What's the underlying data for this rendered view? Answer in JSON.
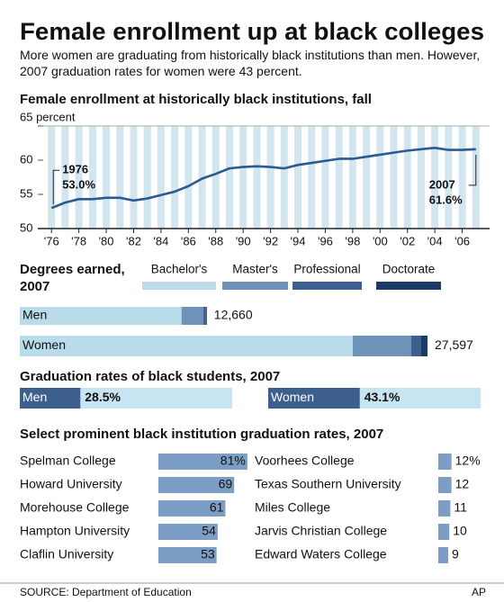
{
  "title": "Female enrollment up at black colleges",
  "subtitle": "More women are graduating from historically black institutions than men. However, 2007 graduation rates for women were 43 percent.",
  "source": "SOURCE: Department of Education",
  "credit": "AP",
  "chart_data": [
    {
      "type": "line",
      "title": "Female enrollment at historically black institutions, fall",
      "x": [
        1976,
        1977,
        1978,
        1979,
        1980,
        1981,
        1982,
        1983,
        1984,
        1985,
        1986,
        1987,
        1988,
        1989,
        1990,
        1991,
        1992,
        1993,
        1994,
        1995,
        1996,
        1997,
        1998,
        1999,
        2000,
        2001,
        2002,
        2003,
        2004,
        2005,
        2006,
        2007
      ],
      "values": [
        53.0,
        53.8,
        54.3,
        54.3,
        54.5,
        54.5,
        54.1,
        54.4,
        54.9,
        55.4,
        56.2,
        57.3,
        58.0,
        58.8,
        59.0,
        59.1,
        59.0,
        58.8,
        59.3,
        59.6,
        59.9,
        60.2,
        60.2,
        60.5,
        60.8,
        61.1,
        61.4,
        61.6,
        61.8,
        61.5,
        61.5,
        61.6
      ],
      "color": "#2a5a92",
      "stripe_color": "#d2e6f0",
      "xlim": [
        1975,
        2008
      ],
      "xticks": [
        {
          "value": 1976,
          "label": "'76"
        },
        {
          "value": 1978,
          "label": "'78"
        },
        {
          "value": 1980,
          "label": "'80"
        },
        {
          "value": 1982,
          "label": "'82"
        },
        {
          "value": 1984,
          "label": "'84"
        },
        {
          "value": 1986,
          "label": "'86"
        },
        {
          "value": 1988,
          "label": "'88"
        },
        {
          "value": 1990,
          "label": "'90"
        },
        {
          "value": 1992,
          "label": "'92"
        },
        {
          "value": 1994,
          "label": "'94"
        },
        {
          "value": 1996,
          "label": "'96"
        },
        {
          "value": 1998,
          "label": "'98"
        },
        {
          "value": 2000,
          "label": "'00"
        },
        {
          "value": 2002,
          "label": "'02"
        },
        {
          "value": 2004,
          "label": "'04"
        },
        {
          "value": 2006,
          "label": "'06"
        }
      ],
      "ylim": [
        50,
        65
      ],
      "yticks": [
        50,
        55,
        60,
        {
          "value": 65,
          "label": "65 percent"
        }
      ],
      "grid": false,
      "annotations": [
        {
          "x": 1976,
          "text": [
            "1976",
            "53.0%"
          ]
        },
        {
          "x": 2007,
          "text": [
            "2007",
            "61.6%"
          ]
        }
      ]
    },
    {
      "type": "bar",
      "title": "Degrees earned, 2007",
      "orientation": "horizontal",
      "stacked": true,
      "categories": [
        "Men",
        "Women"
      ],
      "series": [
        {
          "name": "Bachelor's",
          "color": "#b9dbea",
          "values": [
            10950,
            22540
          ]
        },
        {
          "name": "Master's",
          "color": "#6f93b8",
          "values": [
            1480,
            3960
          ]
        },
        {
          "name": "Professional",
          "color": "#3b5f8f",
          "values": [
            170,
            670
          ]
        },
        {
          "name": "Doctorate",
          "color": "#1a3b66",
          "values": [
            60,
            427
          ]
        }
      ],
      "totals": [
        12660,
        27597
      ],
      "total_labels": [
        "12,660",
        "27,597"
      ]
    },
    {
      "type": "bar",
      "title": "Graduation rates of black students, 2007",
      "orientation": "horizontal",
      "categories": [
        "Men",
        "Women"
      ],
      "values": [
        28.5,
        43.1
      ],
      "value_labels": [
        "28.5%",
        "43.1%"
      ],
      "color": "#3d5f8e",
      "track_color": "#c6e4f1",
      "xlim": [
        0,
        100
      ]
    },
    {
      "type": "bar",
      "title": "Select prominent black institution graduation rates, 2007",
      "orientation": "horizontal",
      "categories": [
        "Spelman College",
        "Howard University",
        "Morehouse College",
        "Hampton University",
        "Claflin University",
        "Voorhees College",
        "Texas Southern University",
        "Miles College",
        "Jarvis Christian College",
        "Edward Waters College"
      ],
      "values": [
        81,
        69,
        61,
        54,
        53,
        12,
        12,
        11,
        10,
        9
      ],
      "value_labels": [
        "81%",
        "69",
        "61",
        "54",
        "53",
        "12%",
        "12",
        "11",
        "10",
        "9"
      ],
      "color": "#7d9ec4",
      "xlim": [
        0,
        100
      ]
    }
  ]
}
